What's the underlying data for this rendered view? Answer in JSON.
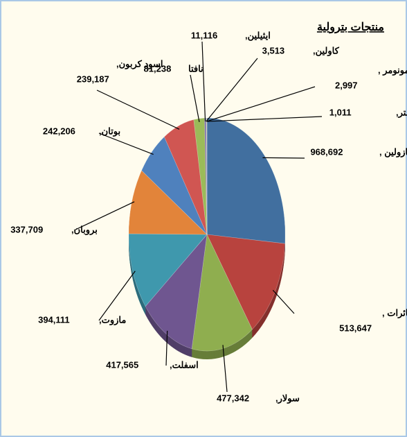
{
  "chart_data": {
    "type": "pie",
    "title": "منتجات بترولية",
    "categories": [
      "جازولين ,",
      "وقود طائرات ,",
      "سولار,",
      "اسفلت,",
      "مازوت,",
      "بروبان,",
      "بوتان,",
      "اسود كربون,",
      "نافتا",
      "ايثيلين,",
      "كاولين,",
      "ستيارين مونومر ,",
      "ميثيل استر,"
    ],
    "values": [
      968692,
      513647,
      477342,
      417565,
      394111,
      337709,
      242206,
      239187,
      81238,
      11116,
      3513,
      2997,
      1011
    ],
    "value_labels": [
      "968,692",
      "513,647",
      "477,342",
      "417,565",
      "394,111",
      "337,709",
      "242,206",
      "239,187",
      "81,238",
      "11,116",
      "3,513",
      "2,997",
      "1,011"
    ],
    "colors": [
      "#416f9f",
      "#b8433e",
      "#8fae4f",
      "#6f5690",
      "#3f98ad",
      "#e2843a",
      "#4f81bd",
      "#d05652",
      "#9bbb59",
      "#8064a2",
      "#4bacc6",
      "#f79646",
      "#7f9fc7"
    ]
  }
}
